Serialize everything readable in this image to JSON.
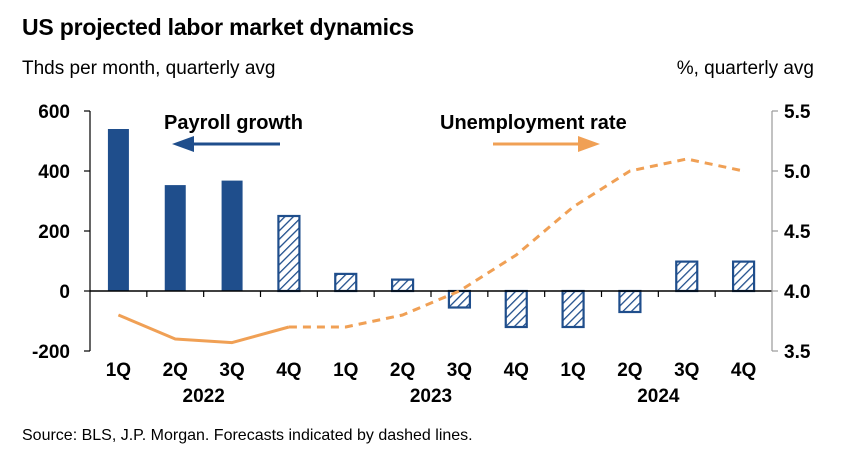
{
  "title": "US projected labor market dynamics",
  "left_units": "Thds per month, quarterly avg",
  "right_units": "%, quarterly avg",
  "source": "Source: BLS, J.P. Morgan. Forecasts indicated by dashed lines.",
  "colors": {
    "bar": "#1f4e8c",
    "line": "#f0a055",
    "axis": "#000000"
  },
  "chart_data": {
    "type": "bar+line",
    "categories": [
      "1Q",
      "2Q",
      "3Q",
      "4Q",
      "1Q",
      "2Q",
      "3Q",
      "4Q",
      "1Q",
      "2Q",
      "3Q",
      "4Q"
    ],
    "year_groups": [
      {
        "label": "2022",
        "start": 0,
        "end": 3
      },
      {
        "label": "2023",
        "start": 4,
        "end": 7
      },
      {
        "label": "2024",
        "start": 8,
        "end": 11
      }
    ],
    "series": [
      {
        "name": "Payroll growth",
        "axis": "left",
        "type": "bar",
        "values": [
          540,
          353,
          368,
          250,
          57,
          38,
          -55,
          -120,
          -120,
          -70,
          98,
          98
        ],
        "forecast_from_index": 3
      },
      {
        "name": "Unemployment rate",
        "axis": "right",
        "type": "line",
        "values": [
          3.8,
          3.6,
          3.57,
          3.7,
          3.7,
          3.8,
          4.0,
          4.3,
          4.7,
          5.0,
          5.1,
          5.0
        ],
        "forecast_from_index": 3
      }
    ],
    "left_axis": {
      "min": -200,
      "max": 600,
      "ticks": [
        -200,
        0,
        200,
        400,
        600
      ]
    },
    "right_axis": {
      "min": 3.5,
      "max": 5.5,
      "ticks": [
        "3.5",
        "4.0",
        "4.5",
        "5.0",
        "5.5"
      ]
    },
    "annotations": {
      "payroll_label": "Payroll growth",
      "unemployment_label": "Unemployment rate"
    }
  }
}
